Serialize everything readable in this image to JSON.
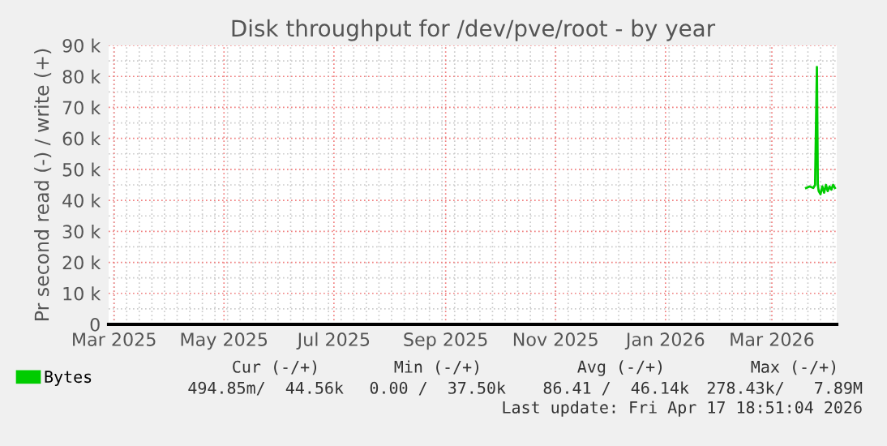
{
  "chart_data": {
    "type": "line",
    "title": "Disk throughput for /dev/pve/root - by year",
    "ylabel": "Pr second read (-) / write (+)",
    "x": [
      "2026-03-20",
      "2026-03-22",
      "2026-03-24",
      "2026-03-25",
      "2026-03-26",
      "2026-03-26T12:00",
      "2026-03-27",
      "2026-03-28",
      "2026-03-29",
      "2026-03-30",
      "2026-03-31",
      "2026-04-01",
      "2026-04-02",
      "2026-04-03",
      "2026-04-04",
      "2026-04-05"
    ],
    "series": [
      {
        "name": "Bytes",
        "color": "#00cc00",
        "values": [
          44000,
          44500,
          44000,
          45000,
          83000,
          45000,
          43000,
          42000,
          44500,
          42500,
          45000,
          43000,
          44500,
          43500,
          45000,
          44000
        ]
      }
    ],
    "xlim": [
      "2025-02-26",
      "2026-04-06"
    ],
    "xticks": [
      {
        "value": "2025-03-01",
        "label": "Mar 2025"
      },
      {
        "value": "2025-05-01",
        "label": "May 2025"
      },
      {
        "value": "2025-07-01",
        "label": "Jul 2025"
      },
      {
        "value": "2025-09-01",
        "label": "Sep 2025"
      },
      {
        "value": "2025-11-01",
        "label": "Nov 2025"
      },
      {
        "value": "2026-01-01",
        "label": "Jan 2026"
      },
      {
        "value": "2026-03-01",
        "label": "Mar 2026"
      }
    ],
    "ylim": [
      0,
      90000
    ],
    "yticks": [
      0,
      {
        "value": 10000,
        "label": "10 k"
      },
      {
        "value": 20000,
        "label": "20 k"
      },
      {
        "value": 30000,
        "label": "30 k"
      },
      {
        "value": 40000,
        "label": "40 k"
      },
      {
        "value": 50000,
        "label": "50 k"
      },
      {
        "value": 60000,
        "label": "60 k"
      },
      {
        "value": 70000,
        "label": "70 k"
      },
      {
        "value": 80000,
        "label": "80 k"
      },
      {
        "value": 90000,
        "label": "90 k"
      }
    ],
    "grid": true,
    "legend": "bottom left",
    "annotations": [
      "Cur (-/+)",
      "Min (-/+)",
      "Avg (-/+)",
      "Max (-/+)",
      "494.85m/  44.56k",
      "0.00 /  37.50k",
      "86.41 /  46.14k",
      "278.43k/   7.89M",
      "Last update: Fri Apr 17 18:51:04 2026"
    ]
  }
}
